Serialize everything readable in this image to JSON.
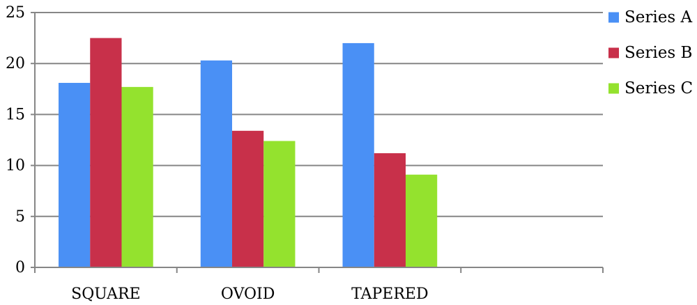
{
  "chart_data": {
    "type": "bar",
    "title": "",
    "xlabel": "",
    "ylabel": "",
    "categories": [
      "SQUARE",
      "OVOID",
      "TAPERED",
      ""
    ],
    "series": [
      {
        "name": "Series A",
        "color": "#4a90f5",
        "values": [
          18.1,
          20.3,
          22.0,
          null
        ]
      },
      {
        "name": "Series B",
        "color": "#c8304a",
        "values": [
          22.5,
          13.4,
          11.2,
          null
        ]
      },
      {
        "name": "Series C",
        "color": "#94e22e",
        "values": [
          17.7,
          12.4,
          9.1,
          null
        ]
      }
    ],
    "ylim": [
      0,
      25
    ],
    "yticks": [
      0,
      5,
      10,
      15,
      20,
      25
    ],
    "grid": true,
    "legend": "right"
  }
}
